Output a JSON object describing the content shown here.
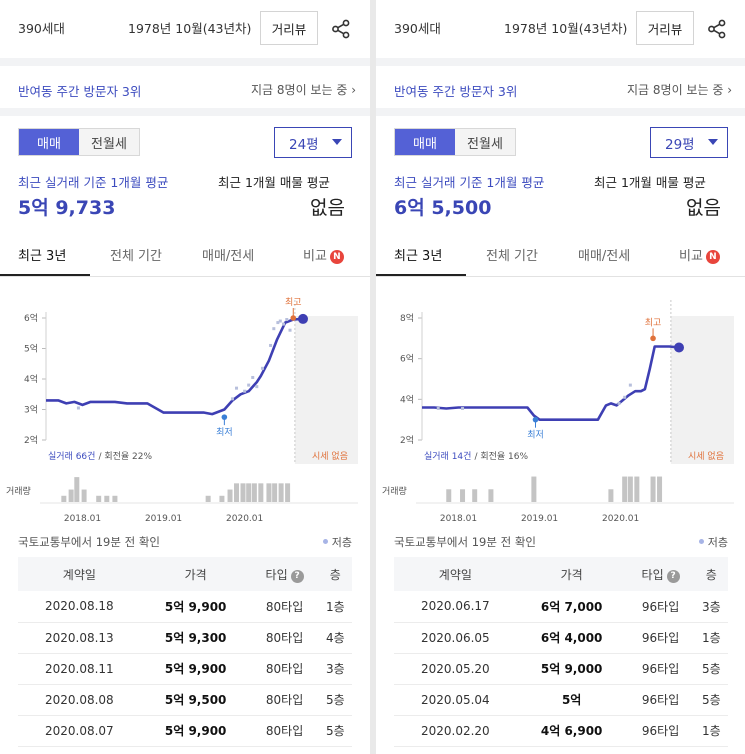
{
  "panels": [
    {
      "header": {
        "households": "390세대",
        "built": "1978년 10월(43년차)",
        "distance_view": "거리뷰"
      },
      "visit": {
        "rank": "반여동 주간 방문자 3위",
        "watching": "지금 8명이 보는 중"
      },
      "trade_types": [
        "매매",
        "전월세"
      ],
      "area": "24평",
      "summary": {
        "avg_label": "최근 실거래 기준 1개월 평균",
        "avg_price": "5억 9,733",
        "listing_label": "최근 1개월 매물 평균",
        "listing_value": "없음"
      },
      "tabs": [
        "최근 3년",
        "전체 기간",
        "매매/전세",
        "비교"
      ],
      "compare_badge": "N",
      "chart_data": {
        "type": "line",
        "y_ticks": [
          "6억",
          "5억",
          "4억",
          "3억",
          "2억"
        ],
        "y_values": [
          6,
          5,
          4,
          3,
          2
        ],
        "ylim": [
          2,
          6
        ],
        "x_ticks": [
          "2018.01",
          "2019.01",
          "2020.01"
        ],
        "x_tick_positions": [
          2018.0,
          2019.0,
          2020.0
        ],
        "xlim": [
          2017.55,
          2020.72
        ],
        "series": [
          {
            "x": [
              2017.55,
              2017.7,
              2017.8,
              2017.9,
              2018.0,
              2018.1,
              2018.2,
              2018.4,
              2018.55,
              2018.7,
              2018.8,
              2019.0,
              2019.2,
              2019.35,
              2019.5,
              2019.6,
              2019.75,
              2019.85,
              2019.95,
              2020.05,
              2020.15,
              2020.2,
              2020.3,
              2020.4,
              2020.5,
              2020.6,
              2020.72
            ],
            "y": [
              3.3,
              3.3,
              3.2,
              3.25,
              3.15,
              3.25,
              3.25,
              3.25,
              3.2,
              3.2,
              3.2,
              2.9,
              2.9,
              2.9,
              2.9,
              2.85,
              3.0,
              3.3,
              3.5,
              3.6,
              3.9,
              4.1,
              4.6,
              5.3,
              5.85,
              5.95,
              5.97
            ]
          }
        ],
        "dots": {
          "x": [
            2017.95,
            2019.85,
            2019.9,
            2020.0,
            2020.05,
            2020.1,
            2020.15,
            2020.22,
            2020.32,
            2020.36,
            2020.41,
            2020.44,
            2020.48,
            2020.52,
            2020.56
          ],
          "y": [
            3.05,
            3.35,
            3.7,
            3.6,
            3.8,
            4.05,
            3.75,
            4.35,
            5.1,
            5.65,
            5.85,
            5.9,
            5.8,
            5.95,
            5.6
          ]
        },
        "high": {
          "label": "최고",
          "x": 2020.6,
          "y": 6.0
        },
        "low": {
          "label": "최저",
          "x": 2019.75,
          "y": 2.75
        },
        "current": {
          "x": 2020.72,
          "y": 5.97
        },
        "no_quote_from": 2020.62,
        "trades_note": "실거래 66건 / 회전율 22%",
        "trades_count": "실거래 66건",
        "turnover": "회전율 22%",
        "no_quote_label": "시세 없음",
        "volume_label": "거래량",
        "volume": {
          "x": [
            2017.77,
            2017.86,
            2017.93,
            2018.02,
            2018.2,
            2018.3,
            2018.4,
            2019.55,
            2019.72,
            2019.82,
            2019.9,
            2019.98,
            2020.05,
            2020.12,
            2020.2,
            2020.3,
            2020.37,
            2020.45,
            2020.53
          ],
          "v": [
            1,
            2,
            4,
            2,
            1,
            1,
            1,
            1,
            1,
            2,
            3,
            3,
            3,
            3,
            3,
            3,
            3,
            3,
            3
          ],
          "vmax": 4.5
        }
      },
      "checked": "국토교통부에서 19분 전 확인",
      "legend_low": "저층",
      "table": {
        "headers": [
          "계약일",
          "가격",
          "타입",
          "층"
        ],
        "type_help": "?",
        "rows": [
          [
            "2020.08.18",
            "5억 9,900",
            "80타입",
            "1층"
          ],
          [
            "2020.08.13",
            "5억 9,300",
            "80타입",
            "4층"
          ],
          [
            "2020.08.11",
            "5억 9,900",
            "80타입",
            "3층"
          ],
          [
            "2020.08.08",
            "5억 9,500",
            "80타입",
            "5층"
          ],
          [
            "2020.08.07",
            "5억 9,900",
            "80타입",
            "5층"
          ]
        ]
      }
    },
    {
      "header": {
        "households": "390세대",
        "built": "1978년 10월(43년차)",
        "distance_view": "거리뷰"
      },
      "visit": {
        "rank": "반여동 주간 방문자 3위",
        "watching": "지금 8명이 보는 중"
      },
      "trade_types": [
        "매매",
        "전월세"
      ],
      "area": "29평",
      "summary": {
        "avg_label": "최근 실거래 기준 1개월 평균",
        "avg_price": "6억 5,500",
        "listing_label": "최근 1개월 매물 평균",
        "listing_value": "없음"
      },
      "tabs": [
        "최근 3년",
        "전체 기간",
        "매매/전세",
        "비교"
      ],
      "compare_badge": "N",
      "chart_data": {
        "type": "line",
        "y_ticks": [
          "8억",
          "6억",
          "4억",
          "2억"
        ],
        "y_values": [
          8,
          6,
          4,
          2
        ],
        "ylim": [
          2,
          8
        ],
        "x_ticks": [
          "2018.01",
          "2019.01",
          "2020.01"
        ],
        "x_tick_positions": [
          2018.0,
          2019.0,
          2020.0
        ],
        "xlim": [
          2017.55,
          2020.72
        ],
        "series": [
          {
            "x": [
              2017.55,
              2017.7,
              2017.85,
              2018.0,
              2018.2,
              2018.4,
              2018.6,
              2018.85,
              2018.93,
              2019.0,
              2019.2,
              2019.4,
              2019.6,
              2019.72,
              2019.82,
              2019.88,
              2019.95,
              2020.1,
              2020.18,
              2020.25,
              2020.3,
              2020.36,
              2020.42,
              2020.6,
              2020.72
            ],
            "y": [
              3.6,
              3.6,
              3.55,
              3.6,
              3.6,
              3.6,
              3.6,
              3.6,
              3.2,
              3.0,
              3.0,
              3.0,
              3.0,
              3.0,
              3.7,
              3.8,
              3.7,
              4.2,
              4.4,
              4.4,
              4.5,
              5.5,
              6.6,
              6.6,
              6.55
            ]
          }
        ],
        "dots": {
          "x": [
            2017.75,
            2018.05,
            2019.98,
            2020.05,
            2020.12
          ],
          "y": [
            3.55,
            3.55,
            3.8,
            4.1,
            4.7
          ]
        },
        "high": {
          "label": "최고",
          "x": 2020.4,
          "y": 7.0
        },
        "low": {
          "label": "최저",
          "x": 2018.95,
          "y": 3.0
        },
        "current": {
          "x": 2020.72,
          "y": 6.55
        },
        "no_quote_from": 2020.62,
        "trades_note": "실거래 14건 / 회전율 16%",
        "trades_count": "실거래 14건",
        "turnover": "회전율 16%",
        "no_quote_label": "시세 없음",
        "volume_label": "거래량",
        "volume": {
          "x": [
            2017.88,
            2018.05,
            2018.2,
            2018.4,
            2018.93,
            2019.88,
            2020.05,
            2020.12,
            2020.2,
            2020.4,
            2020.48
          ],
          "v": [
            1,
            1,
            1,
            1,
            2,
            1,
            2,
            2,
            2,
            2,
            2
          ],
          "vmax": 2.2
        }
      },
      "checked": "국토교통부에서 19분 전 확인",
      "legend_low": "저층",
      "table": {
        "headers": [
          "계약일",
          "가격",
          "타입",
          "층"
        ],
        "type_help": "?",
        "rows": [
          [
            "2020.06.17",
            "6억 7,000",
            "96타입",
            "3층"
          ],
          [
            "2020.06.05",
            "6억 4,000",
            "96타입",
            "1층"
          ],
          [
            "2020.05.20",
            "5억 9,000",
            "96타입",
            "5층"
          ],
          [
            "2020.05.04",
            "5억",
            "96타입",
            "5층"
          ],
          [
            "2020.02.20",
            "4억 6,900",
            "96타입",
            "1층"
          ]
        ]
      }
    }
  ]
}
